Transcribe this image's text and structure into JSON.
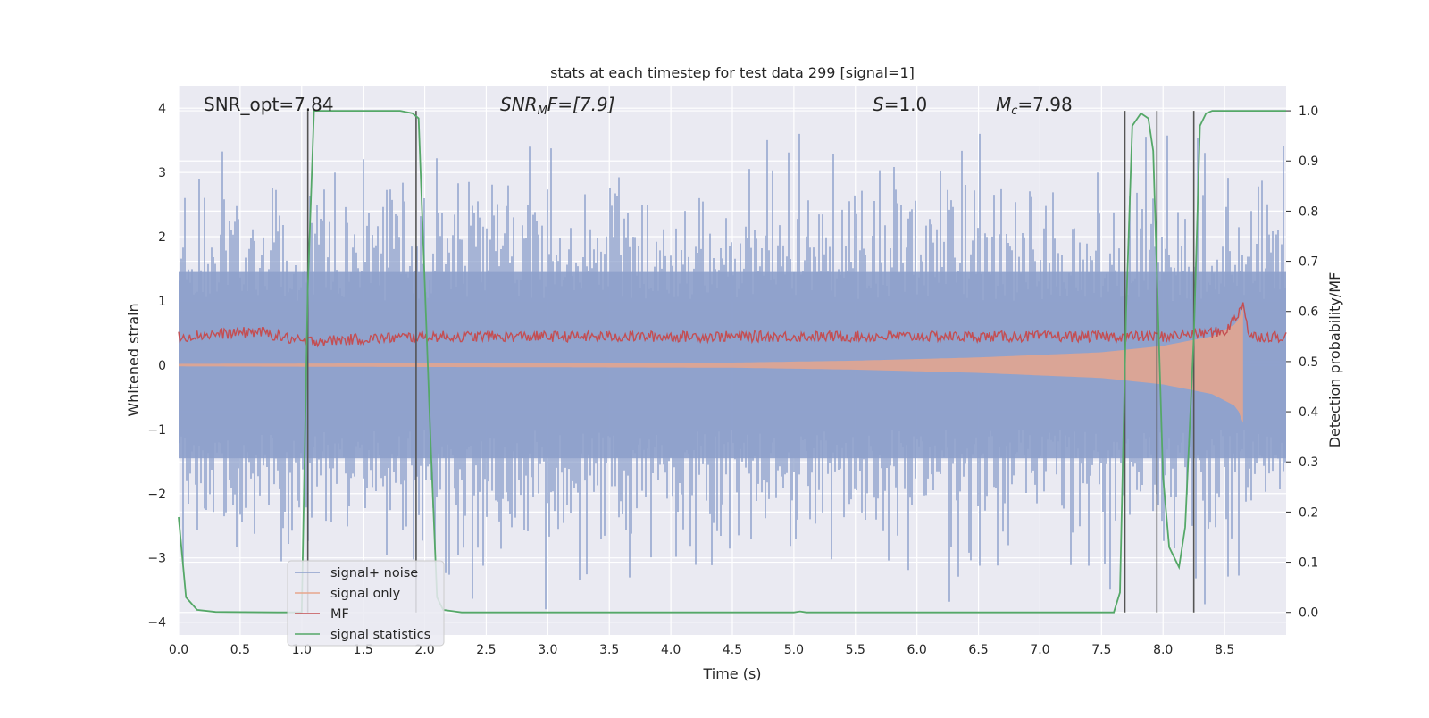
{
  "chart_data": {
    "type": "line",
    "title": "stats at each timestep for test data 299 [signal=1]",
    "xlabel": "Time (s)",
    "ylabel": "Whitened strain",
    "y2label": "Detection probability/MF",
    "xlim": [
      0.0,
      9.0
    ],
    "ylim": [
      -4.2,
      4.35
    ],
    "y2lim": [
      -0.045,
      1.05
    ],
    "xticks": [
      "0.0",
      "0.5",
      "1.0",
      "1.5",
      "2.0",
      "2.5",
      "3.0",
      "3.5",
      "4.0",
      "4.5",
      "5.0",
      "5.5",
      "6.0",
      "6.5",
      "7.0",
      "7.5",
      "8.0",
      "8.5"
    ],
    "yticks": [
      "4",
      "3",
      "2",
      "1",
      "0",
      "−1",
      "−2",
      "−3",
      "−4"
    ],
    "y2ticks": [
      "1.0",
      "0.9",
      "0.8",
      "0.7",
      "0.6",
      "0.5",
      "0.4",
      "0.3",
      "0.2",
      "0.1",
      "0.0"
    ],
    "grid": true,
    "legend_position": "lower-left",
    "annotations": {
      "snr_opt": "SNR_opt=7.84",
      "snr_mf_main": "SNR",
      "snr_mf_sub": "M",
      "snr_mf_rest": "F=[7.9]",
      "s_main": "S",
      "s_rest": "=1.0",
      "mc_main": "M",
      "mc_sub": "c",
      "mc_rest": "=7.98"
    },
    "series": [
      {
        "name": "signal+ noise",
        "color": "#8da0cb",
        "description_values": {
          "envelope_upper": 2.0,
          "envelope_lower": -2.0,
          "peak_max": 3.6,
          "peak_min": -3.8
        }
      },
      {
        "name": "signal only",
        "color": "#e8a68c",
        "x": [
          0.0,
          4.5,
          5.5,
          6.5,
          7.5,
          8.0,
          8.4,
          8.6,
          8.65
        ],
        "amplitude": [
          0.02,
          0.04,
          0.07,
          0.12,
          0.2,
          0.3,
          0.45,
          0.65,
          0.9
        ]
      },
      {
        "name": "MF",
        "color": "#c44e52",
        "x": [
          0.0,
          0.65,
          1.0,
          2.0,
          3.0,
          4.0,
          5.0,
          6.0,
          7.0,
          8.0,
          8.5,
          8.6,
          8.65,
          8.7,
          9.0
        ],
        "y": [
          0.55,
          0.56,
          0.54,
          0.55,
          0.55,
          0.55,
          0.55,
          0.55,
          0.55,
          0.55,
          0.56,
          0.59,
          0.62,
          0.55,
          0.55
        ]
      },
      {
        "name": "signal statistics",
        "color": "#55a868",
        "x": [
          0.0,
          0.06,
          0.15,
          0.3,
          0.8,
          1.0,
          1.05,
          1.1,
          1.15,
          1.8,
          1.9,
          1.95,
          2.05,
          2.1,
          2.15,
          2.3,
          3.0,
          4.0,
          5.0,
          5.05,
          5.1,
          6.0,
          7.0,
          7.6,
          7.65,
          7.7,
          7.75,
          7.82,
          7.88,
          7.92,
          8.0,
          8.05,
          8.13,
          8.18,
          8.25,
          8.3,
          8.35,
          8.4,
          8.5,
          9.0
        ],
        "y": [
          0.19,
          0.03,
          0.005,
          0.001,
          0.0,
          0.0,
          0.65,
          1.0,
          1.0,
          1.0,
          0.995,
          0.985,
          0.33,
          0.03,
          0.005,
          0.0,
          0.0,
          0.0,
          0.0,
          0.002,
          0.0,
          0.0,
          0.0,
          0.0,
          0.04,
          0.6,
          0.97,
          0.995,
          0.985,
          0.92,
          0.27,
          0.13,
          0.09,
          0.17,
          0.55,
          0.97,
          0.995,
          1.0,
          1.0,
          1.0
        ]
      }
    ],
    "vertical_markers_x": [
      1.05,
      1.93,
      7.69,
      7.95,
      8.25
    ]
  }
}
